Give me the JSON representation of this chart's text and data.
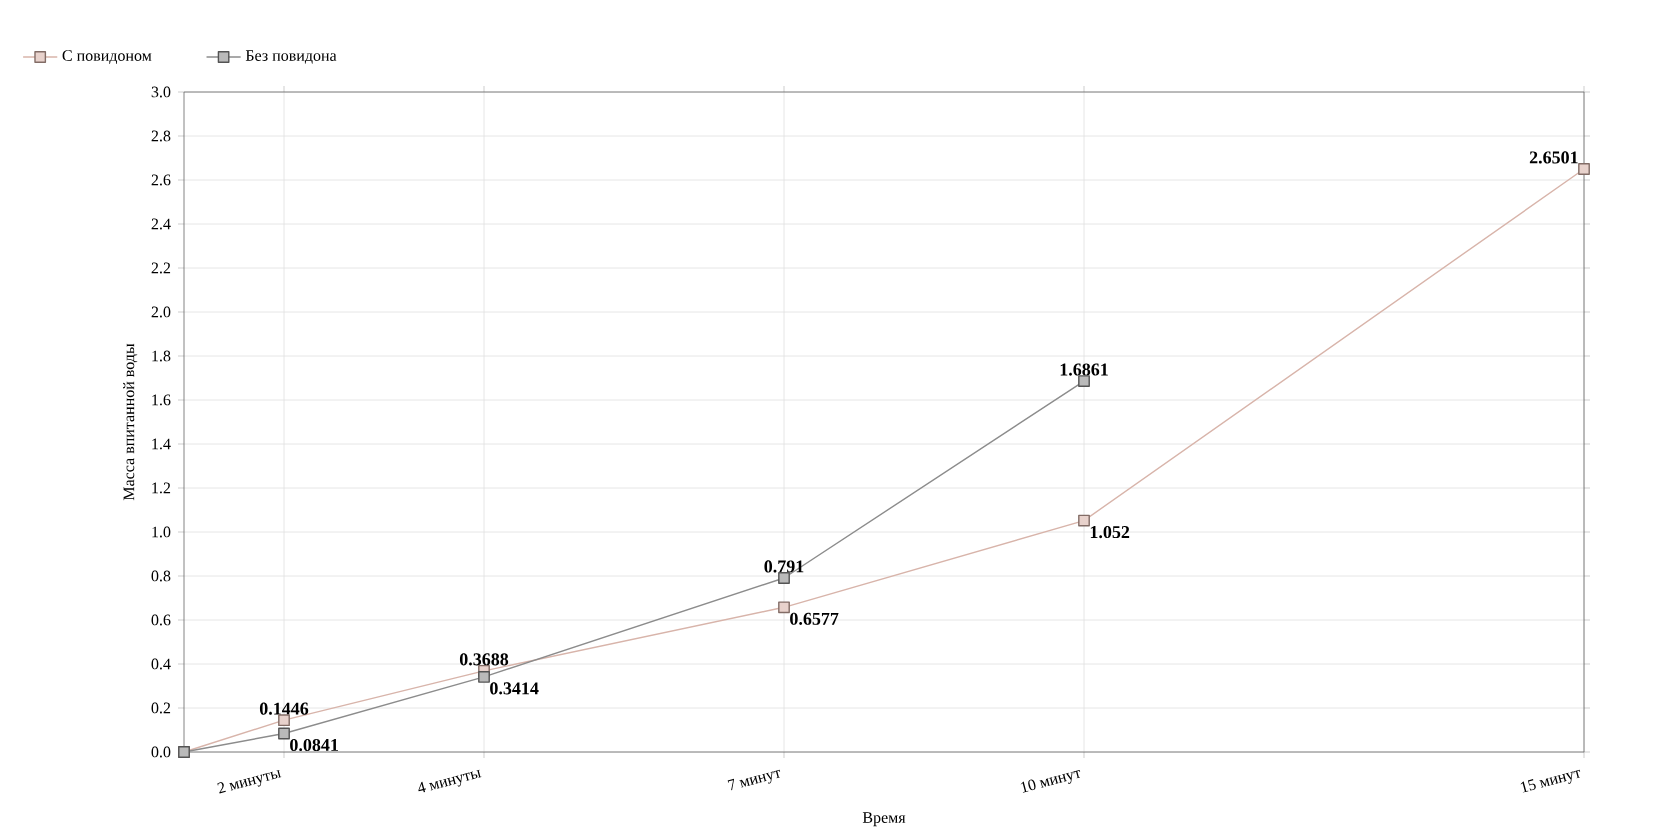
{
  "chart_data": {
    "type": "line",
    "xlabel": "Время",
    "ylabel": "Масса впитанной воды",
    "x": [
      1,
      2,
      4,
      7,
      10,
      15
    ],
    "xlim": [
      1,
      15
    ],
    "xticks": [
      {
        "value": 2,
        "label": "2 минуты"
      },
      {
        "value": 4,
        "label": "4 минуты"
      },
      {
        "value": 7,
        "label": "7 минут"
      },
      {
        "value": 10,
        "label": "10 минут"
      },
      {
        "value": 15,
        "label": "15 минут"
      }
    ],
    "ylim": [
      0,
      3
    ],
    "yticks": [
      {
        "value": 0,
        "label": "0.0"
      },
      0.2,
      0.4,
      0.6,
      0.8,
      {
        "value": 1,
        "label": "1.0"
      },
      1.2,
      1.4,
      1.6,
      1.8,
      {
        "value": 2,
        "label": "2.0"
      },
      2.2,
      2.4,
      2.6,
      2.8,
      {
        "value": 3,
        "label": "3.0"
      }
    ],
    "series": [
      {
        "name": "С повидоном",
        "color": "#d8b4aa",
        "values": [
          0,
          0.1446,
          0.3688,
          0.6577,
          1.052,
          2.6501
        ],
        "value_labels": [
          null,
          "0.1446",
          "0.3688",
          "0.6577",
          "1.052",
          "2.6501"
        ]
      },
      {
        "name": "Без повидона",
        "color": "#8c8c8c",
        "values": [
          0,
          0.0841,
          0.3414,
          0.791,
          1.6861,
          null
        ],
        "value_labels": [
          null,
          "0.0841",
          "0.3414",
          "0.791",
          "1.6861",
          null
        ]
      }
    ],
    "marker": "square",
    "grid": true,
    "legend": "top left"
  }
}
